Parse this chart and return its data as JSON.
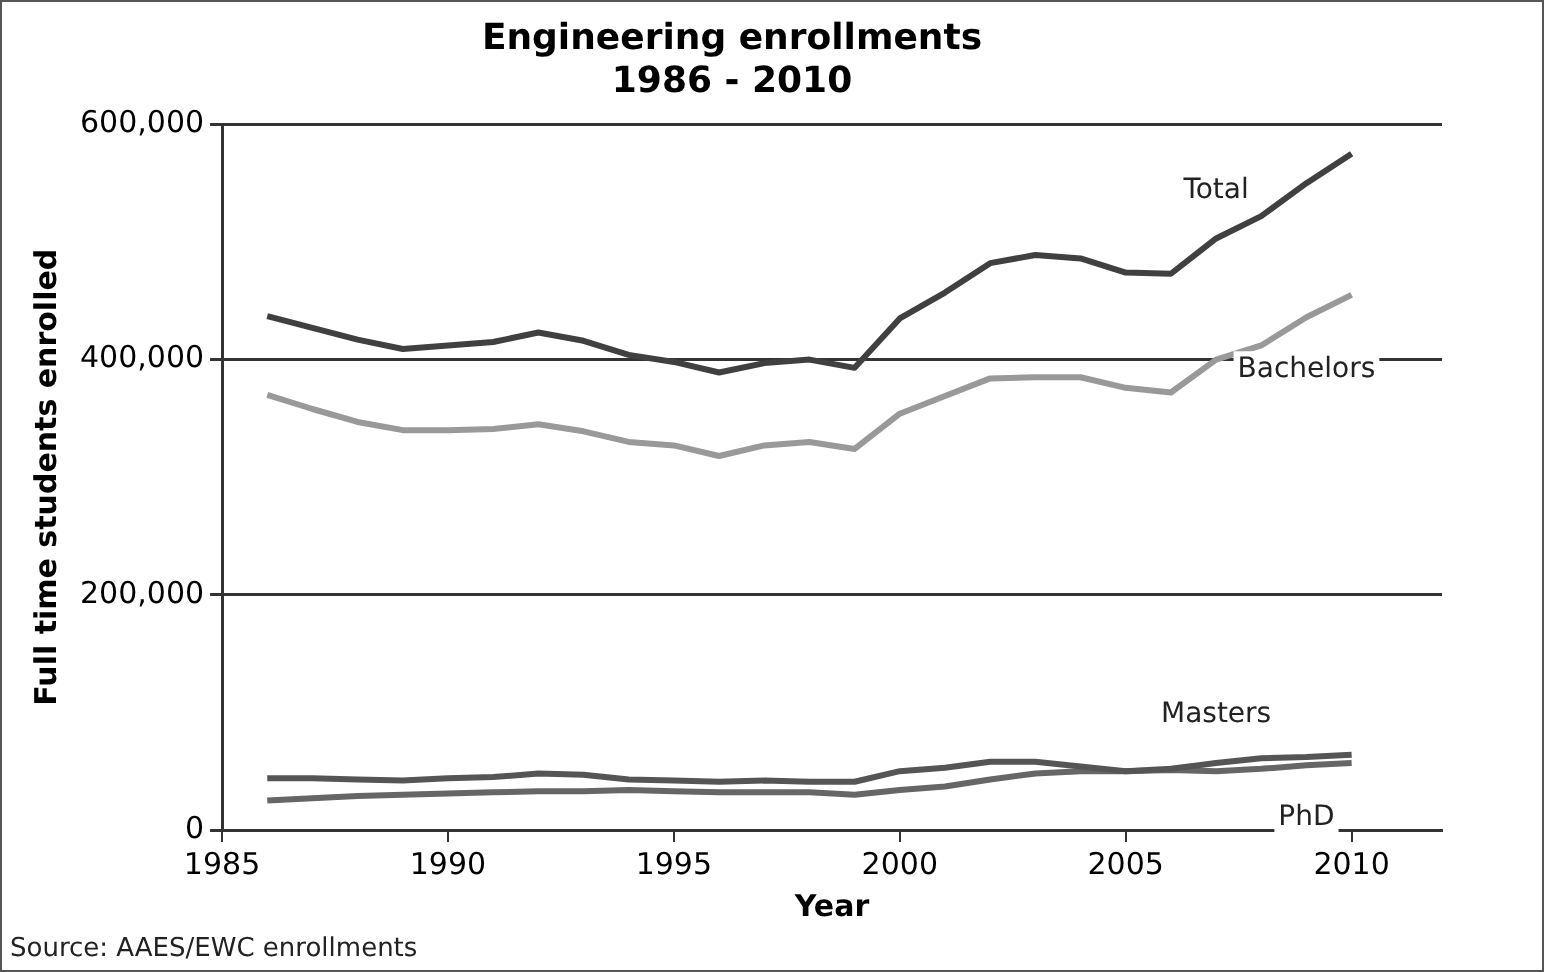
{
  "chart_data": {
    "type": "line",
    "title": "Engineering enrollments\n1986 - 2010",
    "xlabel": "Year",
    "ylabel": "Full time students enrolled",
    "x": [
      1986,
      1987,
      1988,
      1989,
      1990,
      1991,
      1992,
      1993,
      1994,
      1995,
      1996,
      1997,
      1998,
      1999,
      2000,
      2001,
      2002,
      2003,
      2004,
      2005,
      2006,
      2007,
      2008,
      2009,
      2010
    ],
    "series": [
      {
        "name": "Total",
        "color": "#404040",
        "values": [
          437000,
          427000,
          417000,
          409000,
          412000,
          415000,
          423000,
          416000,
          404000,
          398000,
          389000,
          397000,
          400000,
          393000,
          435000,
          457000,
          482000,
          489000,
          486000,
          474000,
          473000,
          503000,
          522000,
          550000,
          575000
        ]
      },
      {
        "name": "Bachelors",
        "color": "#999999",
        "values": [
          370000,
          358000,
          347000,
          340000,
          340000,
          341000,
          345000,
          339000,
          330000,
          327000,
          318000,
          327000,
          330000,
          324000,
          354000,
          369000,
          384000,
          385000,
          385000,
          376000,
          372000,
          400000,
          412000,
          436000,
          455000
        ]
      },
      {
        "name": "Masters",
        "color": "#555555",
        "values": [
          44000,
          44000,
          43000,
          42000,
          44000,
          45000,
          48000,
          47000,
          43000,
          42000,
          41000,
          42000,
          41000,
          41000,
          50000,
          53000,
          58000,
          58000,
          54000,
          50000,
          52000,
          57000,
          61000,
          62000,
          64000
        ]
      },
      {
        "name": "PhD",
        "color": "#666666",
        "values": [
          25000,
          27000,
          29000,
          30000,
          31000,
          32000,
          33000,
          33000,
          34000,
          33000,
          32000,
          32000,
          32000,
          30000,
          34000,
          37000,
          43000,
          48000,
          50000,
          50000,
          51000,
          50000,
          52000,
          55000,
          57000
        ]
      }
    ],
    "xlim": [
      1985,
      2012
    ],
    "xticks": [
      1985,
      1990,
      1995,
      2000,
      2005,
      2010
    ],
    "ylim": [
      0,
      600000
    ],
    "yticks": [
      0,
      {
        "value": 200000,
        "label": "200,000"
      },
      {
        "value": 400000,
        "label": "400,000"
      },
      {
        "value": 600000,
        "label": "600,000"
      }
    ],
    "grid": "y",
    "legend": false,
    "marker": "none",
    "line_style": "solid",
    "annotations": [
      "Source: AAES/EWC enrollments"
    ]
  }
}
